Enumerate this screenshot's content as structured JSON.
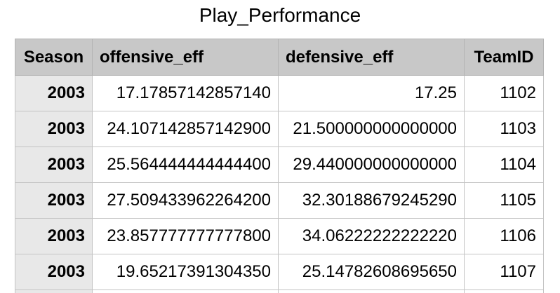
{
  "title": "Play_Performance",
  "columns": [
    "Season",
    "offensive_eff",
    "defensive_eff",
    "TeamID"
  ],
  "rows": [
    {
      "season": "2003",
      "offensive_eff": "17.17857142857140",
      "defensive_eff": "17.25",
      "team_id": "1102"
    },
    {
      "season": "2003",
      "offensive_eff": "24.107142857142900",
      "defensive_eff": "21.500000000000000",
      "team_id": "1103"
    },
    {
      "season": "2003",
      "offensive_eff": "25.564444444444400",
      "defensive_eff": "29.440000000000000",
      "team_id": "1104"
    },
    {
      "season": "2003",
      "offensive_eff": "27.509433962264200",
      "defensive_eff": "32.30188679245290",
      "team_id": "1105"
    },
    {
      "season": "2003",
      "offensive_eff": "23.857777777777800",
      "defensive_eff": "34.06222222222220",
      "team_id": "1106"
    },
    {
      "season": "2003",
      "offensive_eff": "19.65217391304350",
      "defensive_eff": "25.14782608695650",
      "team_id": "1107"
    }
  ],
  "colors": {
    "header_bg": "#c8c8c8",
    "row_header_bg": "#e8e8e8",
    "cell_bg": "#ffffff",
    "grid_line": "#c4c4c4"
  }
}
